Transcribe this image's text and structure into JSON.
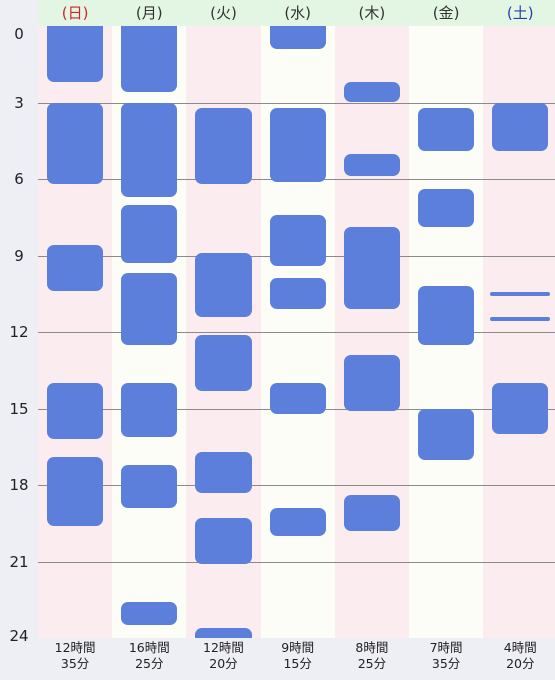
{
  "colors": {
    "block": "#5b7fdb",
    "sunday_text": "#d2232a",
    "saturday_text": "#2a3fa8",
    "weekday_text": "#333333",
    "weekend_bg": "#fbecef",
    "weekday_bg": "#fdfdf7",
    "header_bg": "#e3f6e3"
  },
  "y_axis": {
    "labels": [
      "0",
      "3",
      "6",
      "9",
      "12",
      "15",
      "18",
      "21",
      "24"
    ],
    "max_hours": 24
  },
  "days": [
    {
      "label": "(日)",
      "weekend": true,
      "text_color": "sunday",
      "total_hours": "12時間",
      "total_minutes": "35分",
      "segments": [
        [
          0,
          2.2
        ],
        [
          3,
          6.2
        ],
        [
          8.6,
          10.4
        ],
        [
          14,
          16.2
        ],
        [
          16.9,
          19.6
        ]
      ],
      "thin": []
    },
    {
      "label": "(月)",
      "weekend": false,
      "text_color": "weekday",
      "total_hours": "16時間",
      "total_minutes": "25分",
      "segments": [
        [
          0,
          2.6
        ],
        [
          3,
          6.7
        ],
        [
          7,
          9.3
        ],
        [
          9.7,
          12.5
        ],
        [
          14,
          16.1
        ],
        [
          17.2,
          18.9
        ],
        [
          22.6,
          23.5
        ]
      ],
      "thin": []
    },
    {
      "label": "(火)",
      "weekend": true,
      "text_color": "weekday",
      "total_hours": "12時間",
      "total_minutes": "20分",
      "segments": [
        [
          3.2,
          6.2
        ],
        [
          8.9,
          11.4
        ],
        [
          12.1,
          14.3
        ],
        [
          16.7,
          18.3
        ],
        [
          19.3,
          21.1
        ],
        [
          23.6,
          24.5
        ]
      ],
      "thin": []
    },
    {
      "label": "(水)",
      "weekend": false,
      "text_color": "weekday",
      "total_hours": "9時間",
      "total_minutes": "15分",
      "segments": [
        [
          0,
          0.9
        ],
        [
          3.2,
          6.1
        ],
        [
          7.4,
          9.4
        ],
        [
          9.9,
          11.1
        ],
        [
          14,
          15.2
        ],
        [
          18.9,
          20
        ]
      ],
      "thin": []
    },
    {
      "label": "(木)",
      "weekend": true,
      "text_color": "weekday",
      "total_hours": "8時間",
      "total_minutes": "25分",
      "segments": [
        [
          2.2,
          3
        ],
        [
          5,
          5.9
        ],
        [
          7.9,
          11.1
        ],
        [
          12.9,
          15.1
        ],
        [
          18.4,
          19.8
        ]
      ],
      "thin": []
    },
    {
      "label": "(金)",
      "weekend": false,
      "text_color": "weekday",
      "total_hours": "7時間",
      "total_minutes": "35分",
      "segments": [
        [
          3.2,
          4.9
        ],
        [
          6.4,
          7.9
        ],
        [
          10.2,
          12.5
        ],
        [
          15,
          17
        ]
      ],
      "thin": []
    },
    {
      "label": "(土)",
      "weekend": true,
      "text_color": "saturday",
      "total_hours": "4時間",
      "total_minutes": "20分",
      "segments": [
        [
          3,
          4.9
        ],
        [
          14,
          16
        ]
      ],
      "thin": [
        10.5,
        11.5
      ]
    }
  ]
}
